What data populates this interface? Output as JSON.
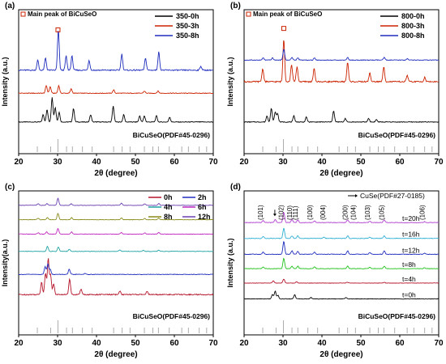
{
  "figure": {
    "chart_data": [
      {
        "type": "line",
        "panel_label": "(a)",
        "xlabel": "2θ (degree)",
        "ylabel": "Intensity (a.u.)",
        "xlim": [
          20,
          70
        ],
        "xticks": [
          20,
          30,
          40,
          50,
          60,
          70
        ],
        "annotation": "Main peak of BiCuSeO",
        "reference_label": "BiCuSeO(PDF#45-0296)",
        "reference_lines": [
          24.8,
          28.2,
          30.1,
          32.3,
          33.8,
          36.4,
          38.9,
          44.4,
          46.6,
          48.6,
          52.3,
          54.5,
          55.9,
          58.7,
          61.9,
          63.6,
          66.4,
          68.3
        ],
        "marker_positions": [
          30.1
        ],
        "series": [
          {
            "name": "350-0h",
            "color": "#000000",
            "peaks": [
              [
                26.3,
                0.3
              ],
              [
                27.3,
                0.5
              ],
              [
                28.6,
                1.0
              ],
              [
                29.4,
                0.6
              ],
              [
                30.4,
                0.4
              ],
              [
                34.1,
                0.55
              ],
              [
                38.5,
                0.3
              ],
              [
                44.3,
                0.65
              ],
              [
                47.0,
                0.3
              ],
              [
                51.1,
                0.25
              ],
              [
                52.3,
                0.25
              ],
              [
                55.4,
                0.25
              ],
              [
                58.8,
                0.2
              ]
            ]
          },
          {
            "name": "350-3h",
            "color": "#cc2200",
            "peaks": [
              [
                27.1,
                0.35
              ],
              [
                28.1,
                0.3
              ],
              [
                30.3,
                0.35
              ],
              [
                33.5,
                0.2
              ],
              [
                44.4,
                0.15
              ],
              [
                52.3,
                0.1
              ],
              [
                55.8,
                0.1
              ]
            ]
          },
          {
            "name": "350-8h",
            "color": "#1f2dbd",
            "peaks": [
              [
                24.9,
                0.25
              ],
              [
                26.9,
                0.3
              ],
              [
                30.2,
                1.0
              ],
              [
                32.2,
                0.35
              ],
              [
                33.7,
                0.35
              ],
              [
                38.1,
                0.25
              ],
              [
                46.5,
                0.4
              ],
              [
                52.6,
                0.3
              ],
              [
                56.0,
                0.45
              ],
              [
                66.8,
                0.1
              ]
            ]
          }
        ]
      },
      {
        "type": "line",
        "panel_label": "(b)",
        "xlabel": "2θ (degree)",
        "ylabel": "Intensity (a.u.)",
        "xlim": [
          20,
          70
        ],
        "xticks": [
          20,
          30,
          40,
          50,
          60,
          70
        ],
        "annotation": "Main peak of BiCuSeO",
        "reference_label": "BiCuSeO(PDF#45-0296)",
        "reference_lines": [
          24.8,
          28.2,
          30.1,
          32.3,
          33.8,
          36.4,
          38.9,
          44.4,
          46.6,
          48.6,
          52.3,
          54.5,
          55.9,
          58.7,
          61.9,
          63.6,
          66.4,
          68.3
        ],
        "marker_positions": [
          30.2
        ],
        "series": [
          {
            "name": "800-0h",
            "color": "#000000",
            "peaks": [
              [
                25.9,
                0.25
              ],
              [
                27.0,
                0.55
              ],
              [
                28.0,
                0.4
              ],
              [
                28.6,
                0.35
              ],
              [
                32.8,
                0.25
              ],
              [
                36.0,
                0.2
              ],
              [
                43.0,
                0.45
              ],
              [
                46.0,
                0.15
              ],
              [
                52.0,
                0.15
              ],
              [
                54.0,
                0.1
              ]
            ]
          },
          {
            "name": "800-3h",
            "color": "#cc2200",
            "peaks": [
              [
                24.8,
                0.3
              ],
              [
                30.2,
                1.0
              ],
              [
                32.2,
                0.4
              ],
              [
                33.6,
                0.35
              ],
              [
                38.0,
                0.3
              ],
              [
                46.6,
                0.45
              ],
              [
                52.3,
                0.2
              ],
              [
                55.9,
                0.35
              ],
              [
                61.9,
                0.15
              ],
              [
                66.4,
                0.1
              ]
            ]
          },
          {
            "name": "800-8h",
            "color": "#1f2dbd",
            "peaks": [
              [
                24.9,
                0.1
              ],
              [
                27.3,
                0.1
              ],
              [
                30.2,
                0.5
              ],
              [
                32.3,
                0.12
              ],
              [
                33.8,
                0.1
              ],
              [
                38.1,
                0.1
              ],
              [
                46.6,
                0.12
              ],
              [
                56.0,
                0.12
              ],
              [
                61.9,
                0.06
              ]
            ]
          }
        ]
      },
      {
        "type": "line",
        "panel_label": "(c)",
        "xlabel": "2θ (degree)",
        "ylabel": "Intensity(a.u.)",
        "xlim": [
          20,
          70
        ],
        "xticks": [
          20,
          30,
          40,
          50,
          60,
          70
        ],
        "reference_label": "BiCuSeO(PDF#45-0296)",
        "reference_lines": [
          24.8,
          28.2,
          30.1,
          32.3,
          33.8,
          36.4,
          38.9,
          44.4,
          46.6,
          48.6,
          52.3,
          54.5,
          55.9,
          58.7,
          61.9,
          63.6,
          66.4,
          68.3
        ],
        "series": [
          {
            "name": "0h",
            "color": "#b5142a",
            "peaks": [
              [
                25.9,
                0.35
              ],
              [
                26.9,
                0.6
              ],
              [
                27.6,
                1.0
              ],
              [
                28.2,
                0.55
              ],
              [
                29.0,
                0.3
              ],
              [
                33.1,
                0.45
              ],
              [
                36.0,
                0.15
              ],
              [
                46.0,
                0.1
              ],
              [
                53.0,
                0.1
              ]
            ]
          },
          {
            "name": "2h",
            "color": "#1f2dbd",
            "peaks": [
              [
                26.8,
                0.45
              ],
              [
                27.5,
                0.6
              ],
              [
                28.1,
                0.3
              ],
              [
                33.0,
                0.3
              ],
              [
                37.0,
                0.05
              ]
            ]
          },
          {
            "name": "4h",
            "color": "#21a3a3",
            "peaks": [
              [
                27.4,
                0.35
              ],
              [
                30.2,
                0.3
              ],
              [
                33.0,
                0.15
              ],
              [
                46.0,
                0.1
              ],
              [
                52.0,
                0.08
              ],
              [
                56.0,
                0.08
              ]
            ]
          },
          {
            "name": "6h",
            "color": "#c028c0",
            "peaks": [
              [
                25.0,
                0.1
              ],
              [
                27.2,
                0.15
              ],
              [
                30.1,
                0.4
              ],
              [
                33.6,
                0.15
              ],
              [
                46.4,
                0.12
              ],
              [
                52.4,
                0.08
              ],
              [
                56.0,
                0.12
              ]
            ]
          },
          {
            "name": "8h",
            "color": "#8a8a1a",
            "peaks": [
              [
                25.0,
                0.1
              ],
              [
                27.4,
                0.15
              ],
              [
                30.1,
                0.45
              ],
              [
                33.6,
                0.15
              ],
              [
                46.4,
                0.12
              ],
              [
                52.4,
                0.08
              ],
              [
                56.0,
                0.1
              ]
            ]
          },
          {
            "name": "12h",
            "color": "#6a3fb0",
            "peaks": [
              [
                25.0,
                0.12
              ],
              [
                27.3,
                0.12
              ],
              [
                30.1,
                0.5
              ],
              [
                33.5,
                0.1
              ],
              [
                46.4,
                0.15
              ],
              [
                52.4,
                0.1
              ],
              [
                56.0,
                0.12
              ]
            ]
          }
        ]
      },
      {
        "type": "line",
        "panel_label": "(d)",
        "xlabel": "2θ (degree)",
        "ylabel": "Intensity (a.u.)",
        "xlim": [
          20,
          70
        ],
        "xticks": [
          20,
          30,
          40,
          50,
          60,
          70
        ],
        "reference_label": "BiCuSeO(PDF#45-0296)",
        "reference_lines": [
          24.8,
          28.2,
          30.1,
          32.3,
          33.8,
          36.4,
          38.9,
          44.4,
          46.6,
          48.6,
          52.3,
          54.5,
          55.9,
          58.7,
          61.9,
          63.6,
          66.4,
          68.3
        ],
        "arrow_legend": "CuSe(PDF#27-0185)",
        "arrow_positions": [
          27.9
        ],
        "miller_indices": [
          {
            "label": "(101)",
            "x": 24.8
          },
          {
            "label": "(102)",
            "x": 30.1
          },
          {
            "label": "(110)",
            "x": 32.3
          },
          {
            "label": "(111)",
            "x": 33.8
          },
          {
            "label": "(100)",
            "x": 37.5
          },
          {
            "label": "(004)",
            "x": 40.8
          },
          {
            "label": "(200)",
            "x": 46.6
          },
          {
            "label": "(104)",
            "x": 48.6
          },
          {
            "label": "(103)",
            "x": 52.3
          },
          {
            "label": "(105)",
            "x": 55.9
          },
          {
            "label": "(106)",
            "x": 66.4
          }
        ],
        "series": [
          {
            "name": "t=0h",
            "color": "#000000",
            "peaks": [
              [
                27.3,
                0.25
              ],
              [
                28.0,
                0.45
              ],
              [
                28.7,
                0.2
              ],
              [
                33.0,
                0.25
              ],
              [
                37.2,
                0.08
              ],
              [
                46.2,
                0.08
              ]
            ]
          },
          {
            "name": "t=4h",
            "color": "#b5142a",
            "peaks": [
              [
                27.5,
                0.2
              ],
              [
                30.2,
                0.35
              ],
              [
                33.5,
                0.1
              ],
              [
                46.5,
                0.08
              ],
              [
                56.0,
                0.06
              ]
            ]
          },
          {
            "name": "t=8h",
            "color": "#23c21e",
            "peaks": [
              [
                24.9,
                0.1
              ],
              [
                30.2,
                0.6
              ],
              [
                32.3,
                0.15
              ],
              [
                33.8,
                0.15
              ],
              [
                38.1,
                0.1
              ],
              [
                46.6,
                0.15
              ],
              [
                52.3,
                0.08
              ],
              [
                56.0,
                0.15
              ],
              [
                66.4,
                0.05
              ]
            ]
          },
          {
            "name": "t=12h",
            "color": "#1f2dbd",
            "peaks": [
              [
                24.9,
                0.12
              ],
              [
                30.2,
                0.75
              ],
              [
                32.3,
                0.2
              ],
              [
                33.8,
                0.18
              ],
              [
                38.1,
                0.12
              ],
              [
                46.6,
                0.2
              ],
              [
                52.3,
                0.1
              ],
              [
                56.0,
                0.2
              ],
              [
                66.4,
                0.06
              ]
            ]
          },
          {
            "name": "t=16h",
            "color": "#2fb0d4",
            "peaks": [
              [
                24.9,
                0.1
              ],
              [
                30.2,
                0.6
              ],
              [
                32.3,
                0.15
              ],
              [
                33.8,
                0.15
              ],
              [
                40.5,
                0.08
              ],
              [
                46.6,
                0.15
              ],
              [
                52.3,
                0.08
              ],
              [
                56.0,
                0.15
              ]
            ]
          },
          {
            "name": "t=20h",
            "color": "#b040d0",
            "peaks": [
              [
                24.9,
                0.12
              ],
              [
                28.0,
                0.18
              ],
              [
                30.2,
                0.6
              ],
              [
                32.3,
                0.18
              ],
              [
                33.8,
                0.15
              ],
              [
                38.1,
                0.1
              ],
              [
                46.6,
                0.16
              ],
              [
                52.3,
                0.08
              ],
              [
                56.0,
                0.16
              ],
              [
                66.4,
                0.05
              ]
            ]
          }
        ]
      }
    ]
  }
}
